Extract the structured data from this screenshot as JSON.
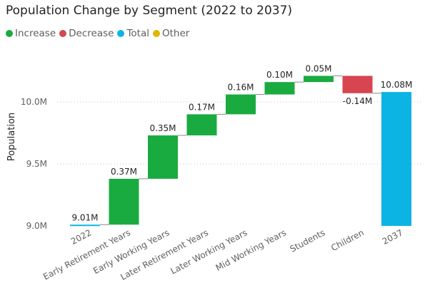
{
  "chart_data": {
    "type": "bar",
    "subtype": "waterfall",
    "title": "Population Change by Segment (2022 to 2037)",
    "xlabel": "",
    "ylabel": "Population",
    "legend": {
      "placement": "top-left",
      "items": [
        {
          "name": "Increase",
          "color": "#1aab40"
        },
        {
          "name": "Decrease",
          "color": "#d64550"
        },
        {
          "name": "Total",
          "color": "#0cb4e4"
        },
        {
          "name": "Other",
          "color": "#e0b500"
        }
      ]
    },
    "ylim": [
      9.0,
      10.2
    ],
    "yticks": [
      {
        "value": 9.0,
        "label": "9.0M"
      },
      {
        "value": 9.5,
        "label": "9.5M"
      },
      {
        "value": 10.0,
        "label": "10.0M"
      }
    ],
    "grid": true,
    "categories": [
      "2022",
      "Early Retirement Years",
      "Early Working Years",
      "Later Retirement Years",
      "Later Working Years",
      "Mid Working Years",
      "Students",
      "Children",
      "2037"
    ],
    "values": [
      9.01,
      0.37,
      0.35,
      0.17,
      0.16,
      0.1,
      0.05,
      -0.14,
      10.08
    ],
    "kinds": [
      "total",
      "increase",
      "increase",
      "increase",
      "increase",
      "increase",
      "increase",
      "decrease",
      "total"
    ],
    "data_labels": [
      "9.01M",
      "0.37M",
      "0.35M",
      "0.17M",
      "0.16M",
      "0.10M",
      "0.05M",
      "-0.14M",
      "10.08M"
    ],
    "colors": {
      "increase": "#1aab40",
      "decrease": "#d64550",
      "total": "#0cb4e4",
      "gridline": "#c8c6c4",
      "connector": "#8a8886"
    }
  }
}
